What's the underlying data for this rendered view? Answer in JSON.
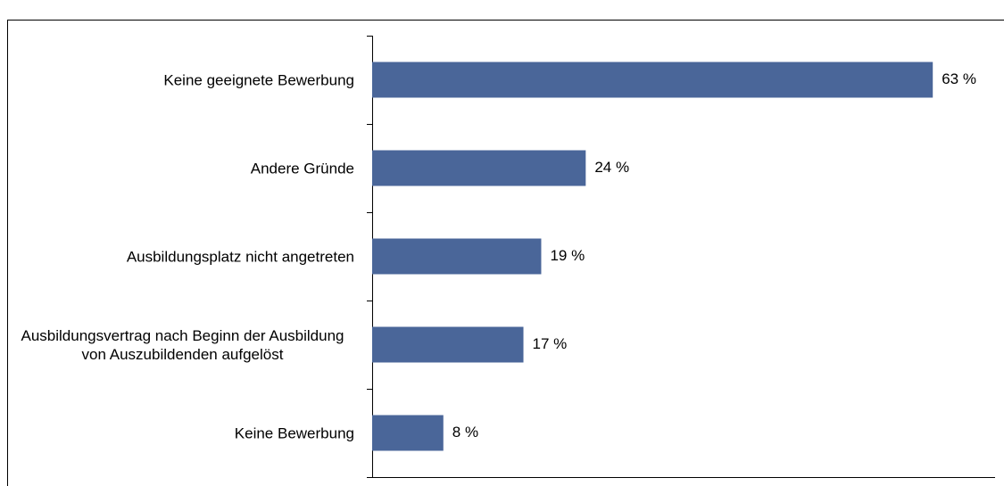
{
  "chart_data": {
    "type": "bar",
    "orientation": "horizontal",
    "categories": [
      "Keine geeignete Bewerbung",
      "Andere Gründe",
      "Ausbildungsplatz nicht angetreten",
      "Ausbildungsvertrag nach Beginn der Ausbildung von Auszubildenden aufgelöst",
      "Keine Bewerbung"
    ],
    "values": [
      63,
      24,
      19,
      17,
      8
    ],
    "value_labels": [
      "63 %",
      "24 %",
      "19 %",
      "17 %",
      "8 %"
    ],
    "color": "#4a6699",
    "xlim": [
      0,
      70
    ]
  }
}
